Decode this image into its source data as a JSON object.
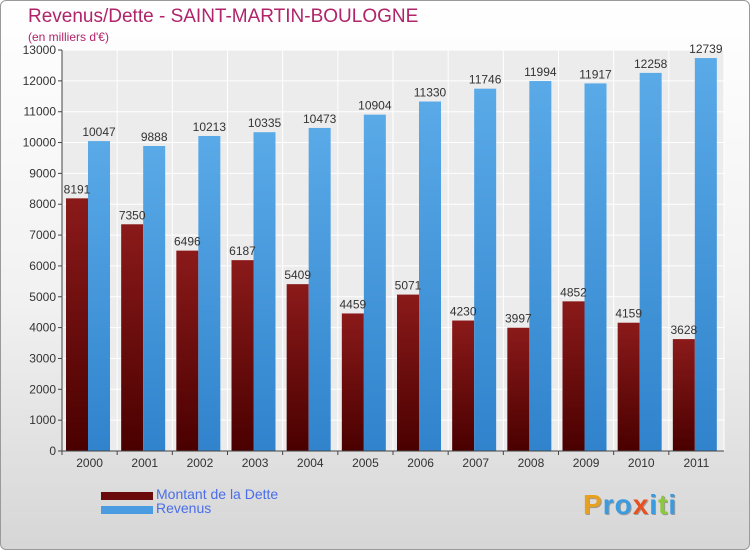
{
  "header": {
    "title": "Revenus/Dette - SAINT-MARTIN-BOULOGNE",
    "subtitle": "(en milliers d'€)"
  },
  "chart_data": {
    "type": "bar",
    "title": "Revenus/Dette - SAINT-MARTIN-BOULOGNE",
    "subtitle": "(en milliers d'€)",
    "categories": [
      "2000",
      "2001",
      "2002",
      "2003",
      "2004",
      "2005",
      "2006",
      "2007",
      "2008",
      "2009",
      "2010",
      "2011"
    ],
    "series": [
      {
        "name": "Montant de la Dette",
        "values": [
          8191,
          7350,
          6496,
          6187,
          5409,
          4459,
          5071,
          4230,
          3997,
          4852,
          4159,
          3628
        ],
        "labels": [
          "8191",
          "7350",
          "6496",
          "6187",
          "5409",
          "4459",
          "5071",
          "4230",
          "3997",
          "4852",
          "4159",
          "3628"
        ],
        "color": "#8b1a1a",
        "color_dark": "#4a0000"
      },
      {
        "name": "Revenus",
        "values": [
          10047,
          9888,
          10213,
          10335,
          10473,
          10904,
          11330,
          11746,
          11994,
          11917,
          12258,
          12739
        ],
        "labels": [
          "10047",
          "9888",
          "10213",
          "10335",
          "10473",
          "10904",
          "11330",
          "11746",
          "11994",
          "11917",
          "12258",
          "12739"
        ],
        "color": "#5aaae8",
        "color_dark": "#3083cc"
      }
    ],
    "yticks": [
      "0",
      "1000",
      "2000",
      "3000",
      "4000",
      "5000",
      "6000",
      "7000",
      "8000",
      "9000",
      "10000",
      "11000",
      "12000",
      "13000"
    ],
    "ylim": [
      0,
      13000
    ],
    "grid": true,
    "legend": "bottom-left"
  },
  "legend": {
    "items": [
      {
        "label": "Montant de la Dette",
        "color": "#6b0a0a"
      },
      {
        "label": "Revenus",
        "color": "#4a9be0"
      }
    ]
  },
  "logo": {
    "letters": [
      "P",
      "r",
      "o",
      "x",
      "i",
      "t",
      "i"
    ],
    "colors": [
      "#e8a020",
      "#3a9be0",
      "#3a9be0",
      "#e85020",
      "#3a9be0",
      "#8cc83c",
      "#3a9be0"
    ]
  }
}
